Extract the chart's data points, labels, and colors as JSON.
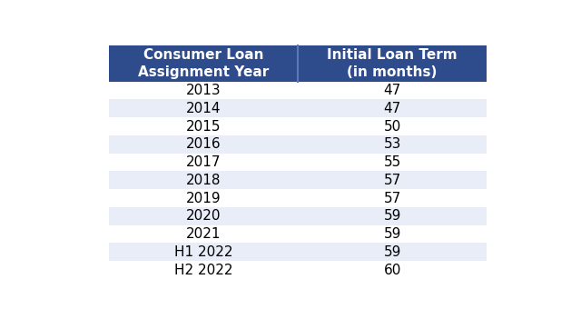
{
  "col1_header": "Consumer Loan\nAssignment Year",
  "col2_header": "Initial Loan Term\n(in months)",
  "rows": [
    [
      "2013",
      "47"
    ],
    [
      "2014",
      "47"
    ],
    [
      "2015",
      "50"
    ],
    [
      "2016",
      "53"
    ],
    [
      "2017",
      "55"
    ],
    [
      "2018",
      "57"
    ],
    [
      "2019",
      "57"
    ],
    [
      "2020",
      "59"
    ],
    [
      "2021",
      "59"
    ],
    [
      "H1 2022",
      "59"
    ],
    [
      "H2 2022",
      "60"
    ]
  ],
  "header_bg": "#2E4B8B",
  "header_text_color": "#FFFFFF",
  "row_bg_even": "#FFFFFF",
  "row_bg_odd": "#E8EDF8",
  "row_text_color": "#000000",
  "fig_bg": "#FFFFFF",
  "header_fontsize": 11,
  "row_fontsize": 11
}
